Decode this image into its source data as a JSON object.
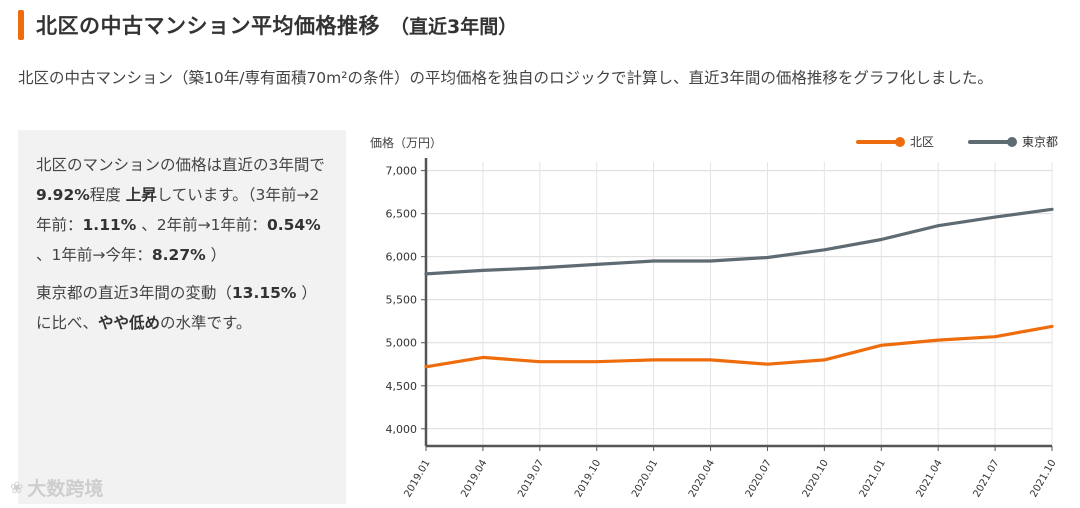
{
  "title": "北区の中古マンション平均価格推移",
  "title_sub": "（直近3年間）",
  "description": "北区の中古マンション（築10年/専有面積70m²の条件）の平均価格を独自のロジックで計算し、直近3年間の価格推移をグラフ化しました。",
  "summary": {
    "p1_a": "北区のマンションの価格は直近の3年間で ",
    "p1_rate": "9.92%",
    "p1_b": "程度 ",
    "p1_dir": "上昇",
    "p1_c": "しています。（3年前→2年前：",
    "p1_r1": "1.11%",
    "p1_d": " 、2年前→1年前：",
    "p1_r2": "0.54%",
    "p1_e": " 、1年前→今年：",
    "p1_r3": "8.27%",
    "p1_f": " ）",
    "p2_a": "東京都の直近3年間の変動（",
    "p2_rate": "13.15%",
    "p2_b": " ）に比べ、",
    "p2_comp": "やや低め",
    "p2_c": "の水準です。"
  },
  "watermark": "大数跨境",
  "chart_data": {
    "type": "line",
    "ylabel": "価格（万円）",
    "x": [
      "2019.01",
      "2019.04",
      "2019.07",
      "2019.10",
      "2020.01",
      "2020.04",
      "2020.07",
      "2020.10",
      "2021.01",
      "2021.04",
      "2021.07",
      "2021.10"
    ],
    "ylim": [
      3800,
      7100
    ],
    "yticks": [
      4000,
      4500,
      5000,
      5500,
      6000,
      6500,
      7000
    ],
    "ytick_labels": [
      "4,000",
      "4,500",
      "5,000",
      "5,500",
      "6,000",
      "6,500",
      "7,000"
    ],
    "grid": true,
    "legend_position": "top-right",
    "series": [
      {
        "name": "北区",
        "color": "#ee6c0c",
        "values": [
          4720,
          4830,
          4780,
          4780,
          4800,
          4800,
          4750,
          4800,
          4970,
          5030,
          5070,
          5190
        ]
      },
      {
        "name": "東京都",
        "color": "#5f6b73",
        "values": [
          5800,
          5840,
          5870,
          5910,
          5950,
          5950,
          5990,
          6080,
          6200,
          6360,
          6460,
          6550
        ]
      }
    ]
  }
}
